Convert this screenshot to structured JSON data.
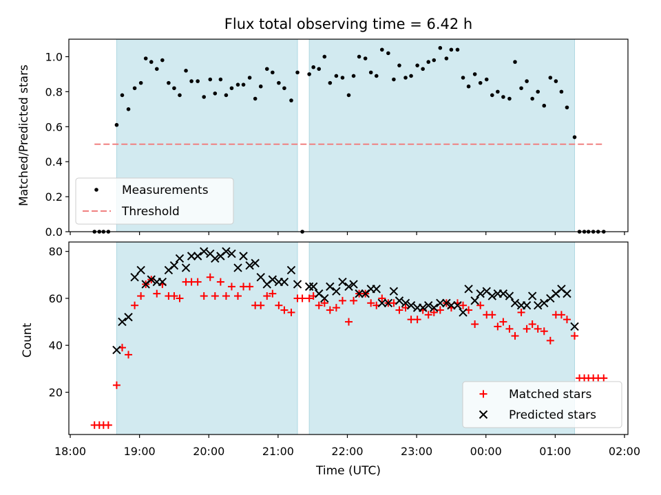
{
  "chart_data": [
    {
      "type": "scatter",
      "title": "Flux total observing time = 6.42 h",
      "xlabel": "",
      "ylabel": "Matched/Predicted stars",
      "xlim": [
        17.98,
        26.05
      ],
      "ylim": [
        0.0,
        1.1
      ],
      "yticks": [
        0.0,
        0.2,
        0.4,
        0.6,
        0.8,
        1.0
      ],
      "ytick_labels": [
        "0.0",
        "0.2",
        "0.4",
        "0.6",
        "0.8",
        "1.0"
      ],
      "shaded_intervals": [
        [
          18.67,
          21.28
        ],
        [
          21.45,
          25.28
        ]
      ],
      "threshold": {
        "name": "Threshold",
        "y": 0.5,
        "x_range": [
          18.35,
          25.7
        ],
        "color": "#f08080"
      },
      "series": [
        {
          "name": "Measurements",
          "marker": "dot",
          "color": "#000000",
          "x": [
            18.35,
            18.42,
            18.48,
            18.55,
            18.67,
            18.75,
            18.84,
            18.93,
            19.02,
            19.09,
            19.17,
            19.25,
            19.33,
            19.42,
            19.5,
            19.58,
            19.67,
            19.75,
            19.84,
            19.93,
            20.02,
            20.09,
            20.17,
            20.25,
            20.33,
            20.42,
            20.5,
            20.59,
            20.67,
            20.75,
            20.84,
            20.92,
            21.01,
            21.09,
            21.19,
            21.28,
            21.35,
            21.45,
            21.51,
            21.59,
            21.67,
            21.75,
            21.84,
            21.93,
            22.02,
            22.09,
            22.17,
            22.26,
            22.34,
            22.42,
            22.5,
            22.59,
            22.67,
            22.75,
            22.84,
            22.92,
            23.01,
            23.09,
            23.17,
            23.25,
            23.34,
            23.43,
            23.5,
            23.59,
            23.67,
            23.75,
            23.84,
            23.92,
            24.01,
            24.09,
            24.17,
            24.25,
            24.34,
            24.42,
            24.51,
            24.59,
            24.67,
            24.75,
            24.84,
            24.93,
            25.01,
            25.09,
            25.17,
            25.28,
            25.35,
            25.42,
            25.48,
            25.55,
            25.62,
            25.7
          ],
          "y": [
            0,
            0,
            0,
            0,
            0.61,
            0.78,
            0.7,
            0.82,
            0.85,
            0.99,
            0.97,
            0.93,
            0.98,
            0.85,
            0.82,
            0.78,
            0.92,
            0.86,
            0.86,
            0.77,
            0.87,
            0.79,
            0.87,
            0.78,
            0.82,
            0.84,
            0.84,
            0.88,
            0.76,
            0.83,
            0.93,
            0.91,
            0.85,
            0.82,
            0.75,
            0.91,
            0,
            0.9,
            0.94,
            0.93,
            1.0,
            0.85,
            0.89,
            0.88,
            0.78,
            0.89,
            1.0,
            0.99,
            0.91,
            0.89,
            1.04,
            1.02,
            0.87,
            0.95,
            0.88,
            0.89,
            0.95,
            0.93,
            0.97,
            0.98,
            1.05,
            0.99,
            1.04,
            1.04,
            0.88,
            0.83,
            0.9,
            0.85,
            0.87,
            0.78,
            0.8,
            0.77,
            0.76,
            0.97,
            0.82,
            0.86,
            0.76,
            0.8,
            0.72,
            0.88,
            0.86,
            0.8,
            0.71,
            0.54,
            0,
            0,
            0,
            0,
            0,
            0
          ]
        }
      ],
      "legend": {
        "position": "lower-left",
        "entries": [
          "Measurements",
          "Threshold"
        ]
      }
    },
    {
      "type": "scatter",
      "title": "",
      "xlabel": "Time (UTC)",
      "ylabel": "Count",
      "xlim": [
        17.98,
        26.05
      ],
      "ylim": [
        2,
        84
      ],
      "yticks": [
        20,
        40,
        60,
        80
      ],
      "ytick_labels": [
        "20",
        "40",
        "60",
        "80"
      ],
      "xticks": [
        18,
        19,
        20,
        21,
        22,
        23,
        24,
        25,
        26
      ],
      "xtick_labels": [
        "18:00",
        "19:00",
        "20:00",
        "21:00",
        "22:00",
        "23:00",
        "00:00",
        "01:00",
        "02:00"
      ],
      "shaded_intervals": [
        [
          18.67,
          21.28
        ],
        [
          21.45,
          25.28
        ]
      ],
      "series": [
        {
          "name": "Matched stars",
          "marker": "plus",
          "color": "#ff0000",
          "x": [
            18.35,
            18.42,
            18.48,
            18.55,
            18.67,
            18.75,
            18.84,
            18.93,
            19.02,
            19.09,
            19.17,
            19.25,
            19.33,
            19.42,
            19.5,
            19.58,
            19.67,
            19.75,
            19.84,
            19.93,
            20.02,
            20.09,
            20.17,
            20.25,
            20.33,
            20.42,
            20.5,
            20.59,
            20.67,
            20.75,
            20.84,
            20.92,
            21.01,
            21.09,
            21.19,
            21.28,
            21.35,
            21.45,
            21.51,
            21.59,
            21.67,
            21.75,
            21.84,
            21.93,
            22.02,
            22.09,
            22.17,
            22.26,
            22.34,
            22.42,
            22.5,
            22.59,
            22.67,
            22.75,
            22.84,
            22.92,
            23.01,
            23.09,
            23.17,
            23.25,
            23.34,
            23.43,
            23.5,
            23.59,
            23.67,
            23.75,
            23.84,
            23.92,
            24.01,
            24.09,
            24.17,
            24.25,
            24.34,
            24.42,
            24.51,
            24.59,
            24.67,
            24.75,
            24.84,
            24.93,
            25.01,
            25.09,
            25.17,
            25.28,
            25.35,
            25.42,
            25.48,
            25.55,
            25.62,
            25.7
          ],
          "y": [
            6,
            6,
            6,
            6,
            23,
            39,
            36,
            57,
            61,
            66,
            68,
            62,
            66,
            61,
            61,
            60,
            67,
            67,
            67,
            61,
            69,
            61,
            67,
            61,
            65,
            61,
            65,
            65,
            57,
            57,
            61,
            62,
            57,
            55,
            54,
            60,
            60,
            60,
            61,
            57,
            58,
            55,
            56,
            59,
            50,
            59,
            62,
            62,
            58,
            57,
            60,
            58,
            58,
            55,
            56,
            51,
            51,
            55,
            53,
            54,
            55,
            58,
            56,
            58,
            57,
            55,
            49,
            57,
            53,
            53,
            48,
            50,
            47,
            44,
            54,
            47,
            49,
            47,
            46,
            42,
            53,
            53,
            51,
            44,
            26,
            26,
            26,
            26,
            26,
            26
          ]
        },
        {
          "name": "Predicted stars",
          "marker": "x",
          "color": "#000000",
          "x": [
            18.67,
            18.75,
            18.84,
            18.93,
            19.02,
            19.09,
            19.17,
            19.25,
            19.33,
            19.42,
            19.5,
            19.58,
            19.67,
            19.75,
            19.84,
            19.93,
            20.02,
            20.09,
            20.17,
            20.25,
            20.33,
            20.42,
            20.5,
            20.59,
            20.67,
            20.75,
            20.84,
            20.92,
            21.01,
            21.09,
            21.19,
            21.28,
            21.45,
            21.51,
            21.59,
            21.67,
            21.75,
            21.84,
            21.93,
            22.02,
            22.09,
            22.17,
            22.26,
            22.34,
            22.42,
            22.5,
            22.59,
            22.67,
            22.75,
            22.84,
            22.92,
            23.01,
            23.09,
            23.17,
            23.25,
            23.34,
            23.43,
            23.5,
            23.59,
            23.67,
            23.75,
            23.84,
            23.92,
            24.01,
            24.09,
            24.17,
            24.25,
            24.34,
            24.42,
            24.51,
            24.59,
            24.67,
            24.75,
            24.84,
            24.93,
            25.01,
            25.09,
            25.17,
            25.28
          ],
          "y": [
            38,
            50,
            52,
            69,
            72,
            66,
            68,
            67,
            67,
            72,
            74,
            77,
            73,
            78,
            78,
            80,
            79,
            77,
            78,
            80,
            79,
            73,
            78,
            74,
            75,
            69,
            66,
            68,
            67,
            67,
            72,
            66,
            65,
            65,
            62,
            60,
            65,
            63,
            67,
            65,
            66,
            62,
            62,
            64,
            64,
            58,
            58,
            63,
            59,
            58,
            57,
            56,
            56,
            57,
            56,
            58,
            58,
            57,
            57,
            54,
            64,
            59,
            62,
            63,
            61,
            62,
            62,
            61,
            58,
            57,
            57,
            61,
            57,
            58,
            60,
            62,
            64,
            62,
            48
          ]
        }
      ],
      "legend": {
        "position": "lower-right",
        "entries": [
          "Matched stars",
          "Predicted stars"
        ]
      }
    }
  ],
  "colors": {
    "shade": "#d2eaf0",
    "shade_edge": "#b0d8e2",
    "threshold": "#f08080",
    "matched": "#ff0000",
    "predicted": "#000000"
  }
}
